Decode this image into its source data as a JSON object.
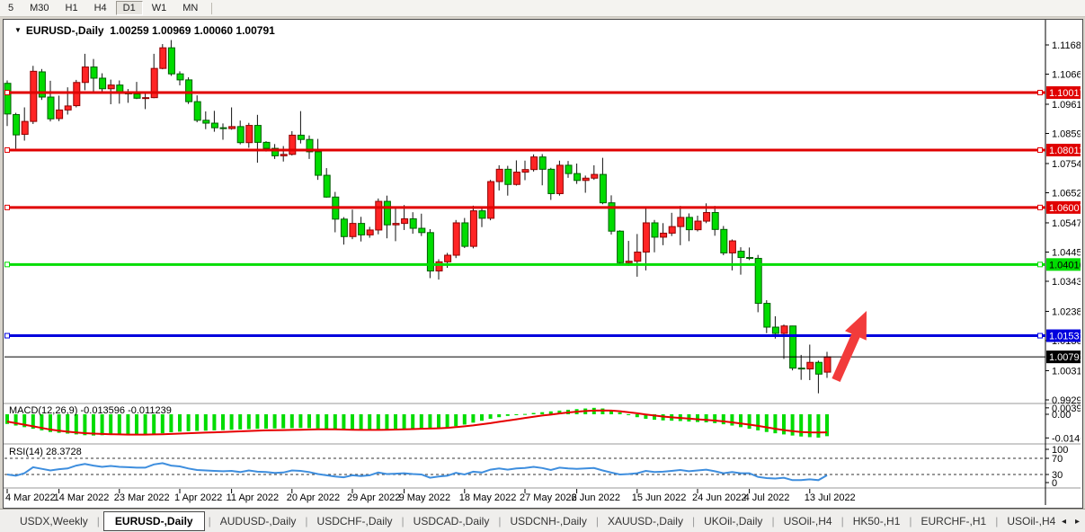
{
  "toolbar": {
    "timeframes": [
      "5",
      "M30",
      "H1",
      "H4",
      "D1",
      "W1",
      "MN"
    ],
    "active": "D1"
  },
  "chart_header": {
    "dropdown_icon": "▼",
    "symbol": "EURUSD-,Daily",
    "ohlc": "1.00259 1.00969 1.00060 1.00791"
  },
  "indicators": {
    "macd": {
      "name": "MACD(12,26,9)",
      "values": "-0.013596 -0.011239",
      "axis_labels": [
        {
          "text": "0.00399",
          "value": 0.00399
        },
        {
          "text": "0.00",
          "value": 0.0
        },
        {
          "text": "-0.01469",
          "value": -0.01469
        }
      ]
    },
    "rsi": {
      "name": "RSI(14)",
      "value": "28.3728",
      "axis_labels": [
        {
          "text": "100",
          "value": 100
        },
        {
          "text": "70",
          "value": 70
        },
        {
          "text": "30",
          "value": 30
        },
        {
          "text": "0",
          "value": 0
        }
      ],
      "levels": [
        70,
        30
      ]
    }
  },
  "chart_data": {
    "type": "candlestick",
    "symbol": "EURUSD-",
    "timeframe": "Daily",
    "x_labels": [
      {
        "text": "4 Mar 2022",
        "index": 0
      },
      {
        "text": "14 Mar 2022",
        "index": 6
      },
      {
        "text": "23 Mar 2022",
        "index": 13
      },
      {
        "text": "1 Apr 2022",
        "index": 20
      },
      {
        "text": "11 Apr 2022",
        "index": 26
      },
      {
        "text": "20 Apr 2022",
        "index": 33
      },
      {
        "text": "29 Apr 2022",
        "index": 40
      },
      {
        "text": "9 May 2022",
        "index": 46
      },
      {
        "text": "18 May 2022",
        "index": 53
      },
      {
        "text": "27 May 2022",
        "index": 60
      },
      {
        "text": "6 Jun 2022",
        "index": 66
      },
      {
        "text": "15 Jun 2022",
        "index": 73
      },
      {
        "text": "24 Jun 2022",
        "index": 80
      },
      {
        "text": "4 Jul 2022",
        "index": 86
      },
      {
        "text": "13 Jul 2022",
        "index": 93
      }
    ],
    "y_ticks": [
      "1.11680",
      "1.10660",
      "1.09610",
      "1.08590",
      "1.07540",
      "1.06520",
      "1.05470",
      "1.04450",
      "1.03430",
      "1.02380",
      "1.01360",
      "1.00310",
      "0.99290"
    ],
    "candles": [
      [
        1.1034,
        1.1044,
        1.0885,
        1.0927
      ],
      [
        1.0925,
        1.0931,
        1.0806,
        1.0854
      ],
      [
        1.0856,
        1.095,
        1.0834,
        1.0901
      ],
      [
        1.0901,
        1.1095,
        1.0892,
        1.1076
      ],
      [
        1.1074,
        1.1084,
        1.0976,
        1.0986
      ],
      [
        1.0986,
        1.1043,
        1.0901,
        1.091
      ],
      [
        1.0911,
        1.0991,
        1.0902,
        1.0941
      ],
      [
        1.0941,
        1.102,
        1.0925,
        1.0955
      ],
      [
        1.0956,
        1.1046,
        1.095,
        1.1037
      ],
      [
        1.1037,
        1.1137,
        1.101,
        1.1091
      ],
      [
        1.1091,
        1.1119,
        1.1003,
        1.1052
      ],
      [
        1.1052,
        1.1069,
        1.1004,
        1.1015
      ],
      [
        1.1015,
        1.1047,
        1.0961,
        1.1028
      ],
      [
        1.1028,
        1.1044,
        1.0963,
        1.1004
      ],
      [
        1.1004,
        1.1014,
        1.0966,
        1.0997
      ],
      [
        1.0997,
        1.1039,
        1.0979,
        1.0982
      ],
      [
        1.0982,
        1.0999,
        1.0944,
        1.0984
      ],
      [
        1.0984,
        1.1137,
        1.0982,
        1.1086
      ],
      [
        1.1086,
        1.1171,
        1.1083,
        1.1158
      ],
      [
        1.1158,
        1.1185,
        1.106,
        1.1067
      ],
      [
        1.1067,
        1.1076,
        1.1027,
        1.1046
      ],
      [
        1.1046,
        1.1055,
        1.0962,
        1.097
      ],
      [
        1.097,
        1.0992,
        1.0898,
        1.0905
      ],
      [
        1.0905,
        1.0936,
        1.0874,
        1.0895
      ],
      [
        1.0895,
        1.0938,
        1.0865,
        1.0879
      ],
      [
        1.0879,
        1.0894,
        1.0837,
        1.0876
      ],
      [
        1.0876,
        1.095,
        1.0872,
        1.0883
      ],
      [
        1.0883,
        1.0904,
        1.0821,
        1.0827
      ],
      [
        1.0827,
        1.0896,
        1.0809,
        1.0887
      ],
      [
        1.0887,
        1.0924,
        1.0757,
        1.0828
      ],
      [
        1.0828,
        1.0832,
        1.0796,
        1.0807
      ],
      [
        1.0807,
        1.0822,
        1.077,
        1.0781
      ],
      [
        1.0781,
        1.0815,
        1.0761,
        1.0786
      ],
      [
        1.0786,
        1.0867,
        1.0782,
        1.0853
      ],
      [
        1.0853,
        1.0937,
        1.0824,
        1.0838
      ],
      [
        1.0838,
        1.0852,
        1.077,
        1.0795
      ],
      [
        1.0795,
        1.084,
        1.0697,
        1.0713
      ],
      [
        1.0713,
        1.0738,
        1.0635,
        1.0637
      ],
      [
        1.0637,
        1.0655,
        1.0514,
        1.056
      ],
      [
        1.056,
        1.0567,
        1.0471,
        1.0499
      ],
      [
        1.0499,
        1.0593,
        1.049,
        1.0545
      ],
      [
        1.0545,
        1.0568,
        1.0482,
        1.0505
      ],
      [
        1.0505,
        1.0533,
        1.0495,
        1.0522
      ],
      [
        1.0522,
        1.0632,
        1.0507,
        1.0622
      ],
      [
        1.0622,
        1.0642,
        1.0493,
        1.054
      ],
      [
        1.054,
        1.0599,
        1.0483,
        1.0545
      ],
      [
        1.0545,
        1.0609,
        1.0522,
        1.0561
      ],
      [
        1.0561,
        1.0584,
        1.0509,
        1.0528
      ],
      [
        1.0528,
        1.0579,
        1.0501,
        1.0513
      ],
      [
        1.0513,
        1.0525,
        1.0354,
        1.0379
      ],
      [
        1.0379,
        1.042,
        1.0349,
        1.0411
      ],
      [
        1.0411,
        1.0442,
        1.039,
        1.0434
      ],
      [
        1.0434,
        1.0557,
        1.0424,
        1.0547
      ],
      [
        1.0547,
        1.0564,
        1.0459,
        1.0465
      ],
      [
        1.0465,
        1.0607,
        1.0458,
        1.0589
      ],
      [
        1.0589,
        1.0604,
        1.0532,
        1.0563
      ],
      [
        1.0563,
        1.0697,
        1.0556,
        1.0691
      ],
      [
        1.0691,
        1.0748,
        1.066,
        1.0734
      ],
      [
        1.0734,
        1.0746,
        1.0642,
        1.0681
      ],
      [
        1.0681,
        1.0765,
        1.0677,
        1.0724
      ],
      [
        1.0724,
        1.0764,
        1.0696,
        1.0733
      ],
      [
        1.0733,
        1.0786,
        1.0726,
        1.0777
      ],
      [
        1.0777,
        1.0787,
        1.0678,
        1.0734
      ],
      [
        1.0734,
        1.0739,
        1.0627,
        1.0649
      ],
      [
        1.0649,
        1.0764,
        1.0642,
        1.0748
      ],
      [
        1.0748,
        1.0763,
        1.0704,
        1.0719
      ],
      [
        1.0719,
        1.0754,
        1.0683,
        1.0695
      ],
      [
        1.0695,
        1.0712,
        1.0652,
        1.0703
      ],
      [
        1.0703,
        1.0748,
        1.0697,
        1.0716
      ],
      [
        1.0716,
        1.0774,
        1.0612,
        1.0617
      ],
      [
        1.0617,
        1.0643,
        1.0506,
        1.0518
      ],
      [
        1.0518,
        1.0521,
        1.0399,
        1.0408
      ],
      [
        1.0408,
        1.0484,
        1.0397,
        1.0413
      ],
      [
        1.0413,
        1.0508,
        1.0359,
        1.0445
      ],
      [
        1.0445,
        1.0601,
        1.0381,
        1.0547
      ],
      [
        1.0547,
        1.0557,
        1.0444,
        1.0497
      ],
      [
        1.0497,
        1.0546,
        1.0469,
        1.0511
      ],
      [
        1.0511,
        1.0582,
        1.0501,
        1.0534
      ],
      [
        1.0534,
        1.0606,
        1.0469,
        1.0566
      ],
      [
        1.0566,
        1.058,
        1.0483,
        1.0523
      ],
      [
        1.0523,
        1.0572,
        1.0517,
        1.0553
      ],
      [
        1.0553,
        1.0615,
        1.0546,
        1.0583
      ],
      [
        1.0583,
        1.0606,
        1.0502,
        1.0524
      ],
      [
        1.0524,
        1.0536,
        1.0434,
        1.0442
      ],
      [
        1.0442,
        1.0489,
        1.0381,
        1.0484
      ],
      [
        1.0448,
        1.0462,
        1.0366,
        1.0426
      ],
      [
        1.0426,
        1.0461,
        1.0417,
        1.0423
      ],
      [
        1.0423,
        1.0435,
        1.0235,
        1.0266
      ],
      [
        1.0266,
        1.0277,
        1.0162,
        1.0183
      ],
      [
        1.0183,
        1.0221,
        1.0143,
        1.0161
      ],
      [
        1.0161,
        1.0192,
        1.0072,
        1.0187
      ],
      [
        1.0187,
        1.0188,
        1.0032,
        1.004
      ],
      [
        1.004,
        1.0086,
        0.9999,
        1.0037
      ],
      [
        1.0037,
        1.0122,
        0.9998,
        1.006
      ],
      [
        1.006,
        1.0066,
        0.9952,
        1.0019
      ],
      [
        1.00259,
        1.00969,
        1.0006,
        1.00791
      ]
    ],
    "macd_histogram": [
      -0.006,
      -0.007,
      -0.008,
      -0.009,
      -0.01,
      -0.011,
      -0.0115,
      -0.012,
      -0.0125,
      -0.013,
      -0.0132,
      -0.013,
      -0.0128,
      -0.0128,
      -0.0127,
      -0.0126,
      -0.0125,
      -0.0124,
      -0.0118,
      -0.0112,
      -0.0108,
      -0.0105,
      -0.0103,
      -0.0102,
      -0.01,
      -0.0098,
      -0.0096,
      -0.0094,
      -0.0092,
      -0.009,
      -0.0089,
      -0.0088,
      -0.0087,
      -0.0086,
      -0.0085,
      -0.0086,
      -0.0088,
      -0.009,
      -0.0092,
      -0.0094,
      -0.0096,
      -0.0098,
      -0.01,
      -0.01,
      -0.0098,
      -0.0096,
      -0.0094,
      -0.0092,
      -0.009,
      -0.0092,
      -0.009,
      -0.0084,
      -0.0074,
      -0.0064,
      -0.0052,
      -0.004,
      -0.0028,
      -0.0018,
      -0.001,
      -0.0004,
      0.0002,
      0.0008,
      0.0013,
      0.0018,
      0.0023,
      0.0028,
      0.0032,
      0.0036,
      0.004,
      0.0036,
      0.0026,
      0.0012,
      -0.0004,
      -0.0018,
      -0.0028,
      -0.0034,
      -0.0038,
      -0.004,
      -0.0042,
      -0.0045,
      -0.0048,
      -0.005,
      -0.0055,
      -0.0062,
      -0.007,
      -0.008,
      -0.009,
      -0.01,
      -0.011,
      -0.0118,
      -0.0125,
      -0.0132,
      -0.0138,
      -0.0142,
      -0.0145,
      -0.0136
    ],
    "macd_signal": [
      -0.0045,
      -0.0055,
      -0.0065,
      -0.0075,
      -0.0085,
      -0.0095,
      -0.0102,
      -0.0108,
      -0.0113,
      -0.0117,
      -0.012,
      -0.0122,
      -0.0124,
      -0.0125,
      -0.0126,
      -0.0126,
      -0.0126,
      -0.0125,
      -0.0124,
      -0.0122,
      -0.012,
      -0.0118,
      -0.0116,
      -0.0114,
      -0.0112,
      -0.011,
      -0.0108,
      -0.0106,
      -0.0104,
      -0.0102,
      -0.01,
      -0.0099,
      -0.0098,
      -0.0097,
      -0.0096,
      -0.0095,
      -0.0094,
      -0.0094,
      -0.0094,
      -0.0095,
      -0.0096,
      -0.0097,
      -0.0097,
      -0.0097,
      -0.0096,
      -0.0095,
      -0.0094,
      -0.0092,
      -0.009,
      -0.0089,
      -0.0087,
      -0.0084,
      -0.008,
      -0.0075,
      -0.0069,
      -0.0062,
      -0.0055,
      -0.0047,
      -0.0039,
      -0.0031,
      -0.0023,
      -0.0015,
      -0.0008,
      -0.0002,
      0.0005,
      0.0011,
      0.0016,
      0.002,
      0.0023,
      0.0024,
      0.0023,
      0.0019,
      0.0013,
      0.0006,
      -0.0001,
      -0.0008,
      -0.0014,
      -0.0019,
      -0.0023,
      -0.0027,
      -0.0031,
      -0.0035,
      -0.0039,
      -0.0044,
      -0.005,
      -0.0057,
      -0.0064,
      -0.0072,
      -0.0081,
      -0.009,
      -0.0098,
      -0.0105,
      -0.011,
      -0.0112,
      -0.0113,
      -0.0112
    ],
    "rsi_series": [
      30,
      27,
      33,
      48,
      44,
      40,
      43,
      45,
      52,
      56,
      52,
      49,
      51,
      49,
      48,
      47,
      47,
      55,
      58,
      52,
      50,
      45,
      41,
      40,
      39,
      38,
      39,
      36,
      40,
      37,
      36,
      34,
      35,
      40,
      39,
      36,
      31,
      28,
      25,
      23,
      28,
      26,
      28,
      35,
      31,
      32,
      33,
      31,
      30,
      22,
      25,
      27,
      34,
      30,
      37,
      35,
      42,
      45,
      42,
      45,
      46,
      49,
      46,
      41,
      47,
      45,
      44,
      45,
      46,
      40,
      35,
      30,
      31,
      33,
      39,
      36,
      37,
      39,
      41,
      38,
      40,
      42,
      38,
      33,
      36,
      33,
      33,
      24,
      21,
      20,
      22,
      16,
      16,
      18,
      16,
      28
    ],
    "hlines": [
      {
        "price": 1.10017,
        "label": "1.10017",
        "color": "#e00000",
        "text_color": "#ffffff",
        "thickness": 3,
        "handles": true
      },
      {
        "price": 1.08011,
        "label": "1.08011",
        "color": "#e00000",
        "text_color": "#ffffff",
        "thickness": 3,
        "handles": true
      },
      {
        "price": 1.06007,
        "label": "1.06007",
        "color": "#e00000",
        "text_color": "#ffffff",
        "thickness": 3,
        "handles": true
      },
      {
        "price": 1.04016,
        "label": "1.04016",
        "color": "#00dd00",
        "text_color": "#000000",
        "thickness": 3,
        "handles": true
      },
      {
        "price": 1.01531,
        "label": "1.01531",
        "color": "#0000dd",
        "text_color": "#ffffff",
        "thickness": 3,
        "handles": true
      },
      {
        "price": 1.00791,
        "label": "1.00791",
        "color": "#000000",
        "text_color": "#ffffff",
        "thickness": 1,
        "handles": false
      }
    ],
    "colors": {
      "bull_body": "#ff2424",
      "bull_border": "#8f0000",
      "bear_body": "#00dc00",
      "bear_border": "#005e00",
      "wick": "#111111",
      "macd_hist": "#00dc00",
      "macd_signal": "#e60000",
      "rsi_line": "#3e8ede"
    },
    "annotation_arrow": {
      "tail": [
        930,
        423
      ],
      "tip": [
        964,
        346
      ],
      "color": "#f23b3b"
    }
  },
  "tabs": {
    "items": [
      "USDX,Weekly",
      "EURUSD-,Daily",
      "AUDUSD-,Daily",
      "USDCHF-,Daily",
      "USDCAD-,Daily",
      "USDCNH-,Daily",
      "XAUUSD-,Daily",
      "UKOil-,Daily",
      "USOil-,H4",
      "HK50-,H1",
      "EURCHF-,H1",
      "USOil-,H4"
    ],
    "active_index": 1,
    "nav_left": "◂",
    "nav_right": "▸"
  }
}
